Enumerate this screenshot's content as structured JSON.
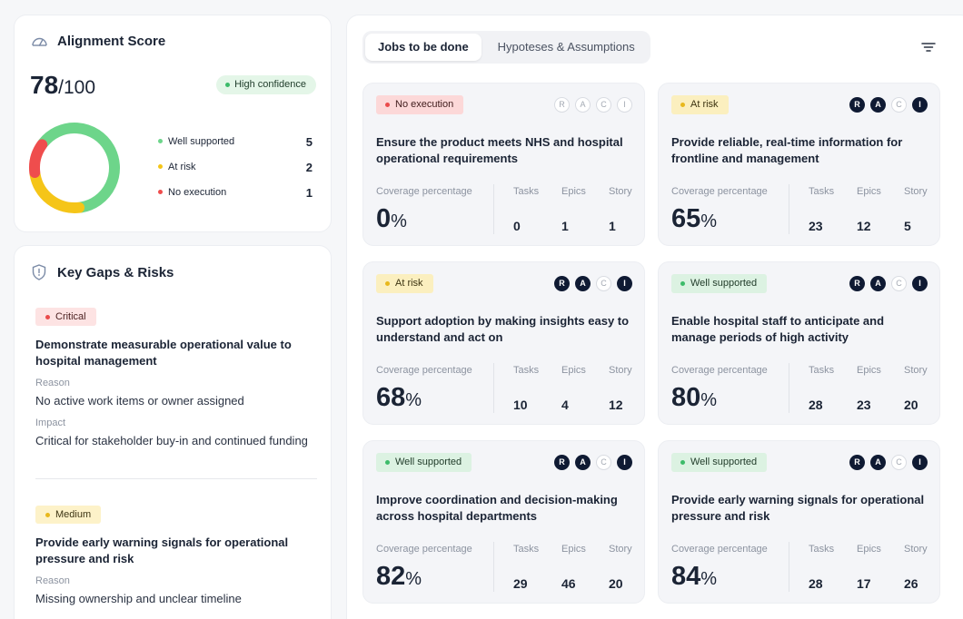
{
  "alignment": {
    "title": "Alignment Score",
    "icon": "gauge-icon",
    "score": "78",
    "score_max": "/100",
    "confidence": "High confidence",
    "legend": [
      {
        "label": "Well supported",
        "value": "5",
        "color": "#6dd58a"
      },
      {
        "label": "At risk",
        "value": "2",
        "color": "#f5c518"
      },
      {
        "label": "No execution",
        "value": "1",
        "color": "#ef4d4d"
      }
    ]
  },
  "gaps": {
    "title": "Key Gaps & Risks",
    "icon": "shield-icon",
    "items": [
      {
        "severity": "Critical",
        "title": "Demonstrate measurable operational value to hospital management",
        "reason_label": "Reason",
        "reason": "No active work items or owner assigned",
        "impact_label": "Impact",
        "impact": "Critical for stakeholder buy-in and continued funding"
      },
      {
        "severity": "Medium",
        "title": "Provide early warning signals for operational pressure and risk",
        "reason_label": "Reason",
        "reason": "Missing ownership and unclear timeline"
      }
    ]
  },
  "tabs": [
    {
      "label": "Jobs to be done",
      "active": true
    },
    {
      "label": "Hypoteses & Assumptions",
      "active": false
    }
  ],
  "filter_icon": "filter-icon",
  "metric_labels": {
    "coverage": "Coverage percentage",
    "tasks": "Tasks",
    "epics": "Epics",
    "story": "Story"
  },
  "raci_letters": [
    "R",
    "A",
    "C",
    "I"
  ],
  "jobs": [
    {
      "status": "No execution",
      "raci": [
        false,
        false,
        false,
        false
      ],
      "title": "Ensure the product meets NHS and hospital operational requirements",
      "coverage": "0",
      "tasks": "0",
      "epics": "1",
      "story": "1"
    },
    {
      "status": "At risk",
      "raci": [
        true,
        true,
        false,
        true
      ],
      "title": "Provide reliable, real-time information for frontline and management",
      "coverage": "65",
      "tasks": "23",
      "epics": "12",
      "story": "5"
    },
    {
      "status": "At risk",
      "raci": [
        true,
        true,
        false,
        true
      ],
      "title": "Support adoption by making insights easy to understand and act on",
      "coverage": "68",
      "tasks": "10",
      "epics": "4",
      "story": "12"
    },
    {
      "status": "Well supported",
      "raci": [
        true,
        true,
        false,
        true
      ],
      "title": "Enable hospital staff to anticipate and manage periods of high activity",
      "coverage": "80",
      "tasks": "28",
      "epics": "23",
      "story": "20"
    },
    {
      "status": "Well supported",
      "raci": [
        true,
        true,
        false,
        true
      ],
      "title": "Improve coordination and decision-making across hospital departments",
      "coverage": "82",
      "tasks": "29",
      "epics": "46",
      "story": "20"
    },
    {
      "status": "Well supported",
      "raci": [
        true,
        true,
        false,
        true
      ],
      "title": "Provide early warning signals for operational pressure and risk",
      "coverage": "84",
      "tasks": "28",
      "epics": "17",
      "story": "26"
    }
  ]
}
